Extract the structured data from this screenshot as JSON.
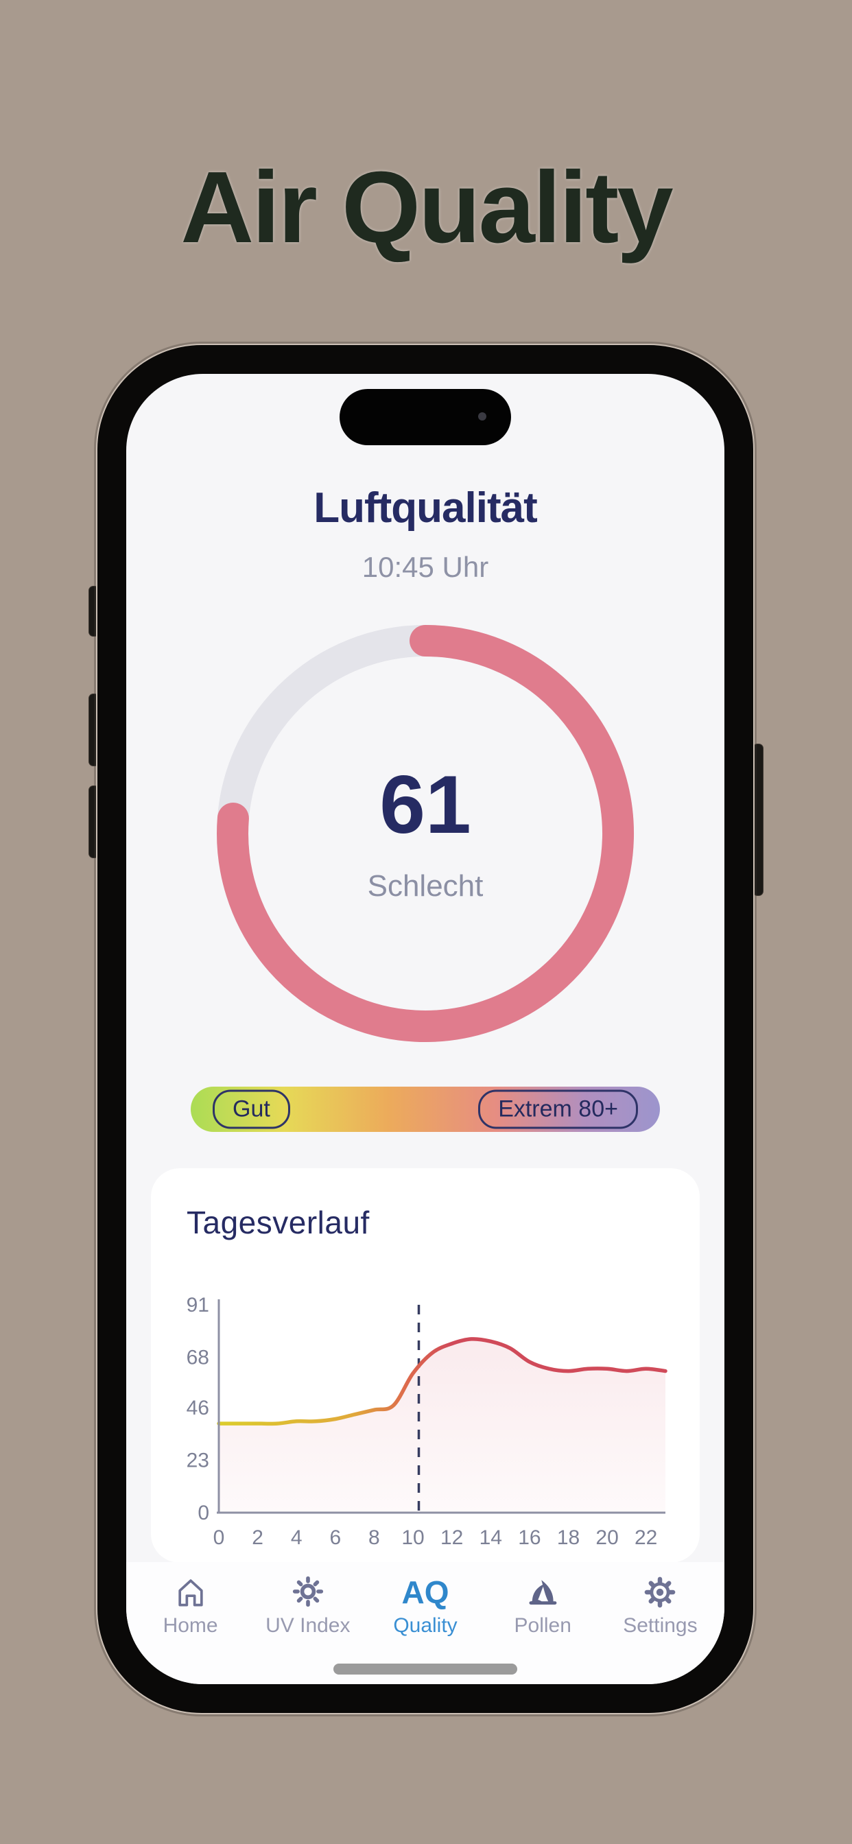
{
  "page": {
    "heading": "Air Quality",
    "background_color": "#a89a8e",
    "heading_color": "#1f2a1f"
  },
  "screen": {
    "title": "Luftqualität",
    "time": "10:45 Uhr"
  },
  "gauge": {
    "value": 61,
    "max": 80,
    "status_label": "Schlecht",
    "arc_color": "#e07c8d",
    "track_color": "#e4e4ea",
    "value_color": "#262b63",
    "status_color": "#8b8fa4"
  },
  "scale_bar": {
    "left_pill": "Gut",
    "right_pill": "Extrem 80+",
    "gradient_stops": [
      "#abdc55 0%",
      "#e6d957 20%",
      "#ecab5b 42%",
      "#e68d82 65%",
      "#b18fbf 84%",
      "#9c95cd 100%"
    ],
    "pill_outline_color": "#2e3367"
  },
  "chart_card": {
    "title": "Tagesverlauf"
  },
  "chart_data": {
    "type": "area",
    "title": "Tagesverlauf",
    "x": [
      0,
      1,
      2,
      3,
      4,
      5,
      6,
      7,
      8,
      9,
      10,
      11,
      12,
      13,
      14,
      15,
      16,
      17,
      18,
      19,
      20,
      21,
      22,
      23
    ],
    "values": [
      39,
      39,
      39,
      39,
      40,
      40,
      41,
      43,
      45,
      47,
      61,
      70,
      74,
      76,
      75,
      72,
      66,
      63,
      62,
      63,
      63,
      62,
      63,
      62
    ],
    "xticks": [
      0,
      2,
      4,
      6,
      8,
      10,
      12,
      14,
      16,
      18,
      20,
      22
    ],
    "yticks": [
      0,
      23,
      46,
      68,
      91
    ],
    "xlim": [
      0,
      23
    ],
    "ylim": [
      0,
      91
    ],
    "now_marker_hour": 10.3,
    "line_gradient": [
      "#dccc2d",
      "#e0a93a",
      "#dd6a4c",
      "#d04a59"
    ],
    "fill_color_rgb": "214,90,110",
    "axis_color": "#8e90a4",
    "tick_label_color": "#7c8095",
    "marker_color": "#363c60",
    "grid": false,
    "legend": false
  },
  "tab_bar": {
    "active_color": "#3a8fd3",
    "inactive_icon_color": "#6e7294",
    "inactive_label_color": "#989ab0",
    "items": [
      {
        "id": "home",
        "label": "Home",
        "icon": "home-icon",
        "active": false
      },
      {
        "id": "uv-index",
        "label": "UV Index",
        "icon": "sun-icon",
        "active": false
      },
      {
        "id": "aq-quality",
        "label": "Quality",
        "icon": "aq-text-icon",
        "icon_text": "AQ",
        "active": true
      },
      {
        "id": "pollen",
        "label": "Pollen",
        "icon": "pollen-icon",
        "active": false
      },
      {
        "id": "settings",
        "label": "Settings",
        "icon": "gear-icon",
        "active": false
      }
    ]
  }
}
